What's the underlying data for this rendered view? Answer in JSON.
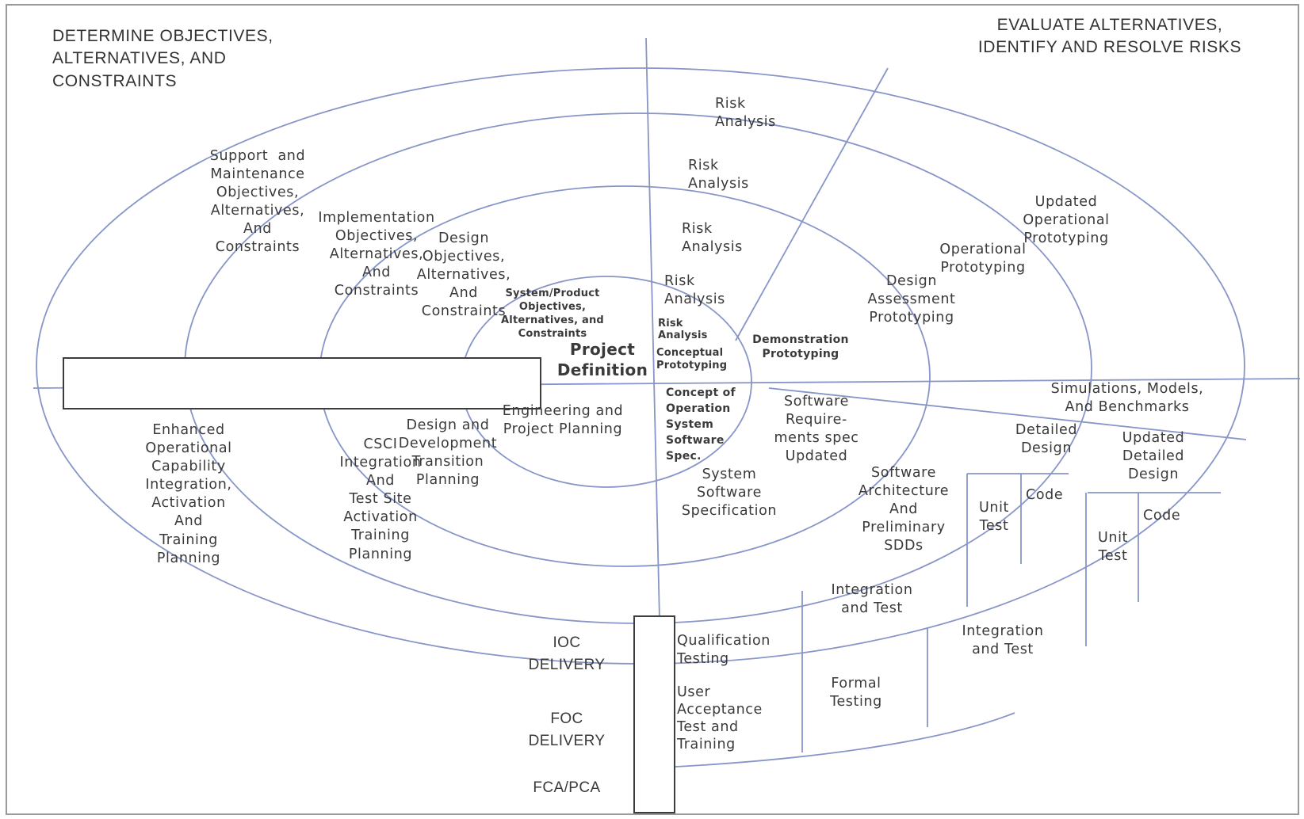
{
  "quadrants": {
    "top_left": "DETERMINE OBJECTIVES,\nALTERNATIVES, AND\nCONSTRAINTS",
    "top_right": "EVALUATE ALTERNATIVES,\nIDENTIFY AND RESOLVE RISKS"
  },
  "objectives": {
    "support": "Support  and\nMaintenance\nObjectives,\nAlternatives,\nAnd\nConstraints",
    "implementation": "Implementation\nObjectives,\nAlternatives,\nAnd\nConstraints",
    "design": "Design\nObjectives,\nAlternatives,\nAnd\nConstraints",
    "system": "System/Product\nObjectives,\nAlternatives, and\nConstraints"
  },
  "risk": {
    "r1": "Risk\nAnalysis",
    "r2": "Risk\nAnalysis",
    "r3": "Risk\nAnalysis",
    "r4": "Risk\nAnalysis",
    "r5": "Risk\nAnalysis"
  },
  "prototyping": {
    "updated_operational": "Updated\nOperational\nPrototyping",
    "operational": "Operational\nPrototyping",
    "design_assessment": "Design\nAssessment\nPrototyping",
    "demonstration": "Demonstration\nPrototyping",
    "conceptual": "Conceptual\nPrototyping"
  },
  "center": {
    "project_definition": "Project\nDefinition",
    "engineering": "Engineering and\nProject Planning",
    "concept_of_operation": "Concept of\nOperation\nSystem\nSoftware\nSpec."
  },
  "development": {
    "simulations": "Simulations, Models,\nAnd Benchmarks",
    "software_requirements": "Software\nRequire-\nments spec\nUpdated",
    "system_software_spec": "System\nSoftware\nSpecification",
    "software_architecture": "Software\nArchitecture\nAnd\nPreliminary\nSDDs",
    "detailed_design": "Detailed\nDesign",
    "updated_detailed_design": "Updated\nDetailed\nDesign",
    "code1": "Code",
    "code2": "Code",
    "unit_test1": "Unit\nTest",
    "unit_test2": "Unit\nTest",
    "integration_test1": "Integration\nand Test",
    "integration_test2": "Integration\nand Test",
    "qualification": "Qualification\nTesting",
    "user_acceptance": "User\nAcceptance\nTest and\nTraining",
    "formal_testing": "Formal\nTesting"
  },
  "planning": {
    "enhanced": "Enhanced\nOperational\nCapability\nIntegration,\nActivation\nAnd\nTraining\nPlanning",
    "csci": "CSCI\nIntegration\nAnd\nTest Site\nActivation\nTraining\nPlanning",
    "design_dev": "Design and\nDevelopment\nTransition\nPlanning"
  },
  "deliveries": {
    "ioc": "IOC\nDELIVERY",
    "foc": "FOC\nDELIVERY",
    "fca": "FCA/PCA"
  },
  "colors": {
    "line": "#8795c8",
    "box": "#3d3d3d",
    "text": "#3a3a3a",
    "frame": "#9a9a9a"
  }
}
